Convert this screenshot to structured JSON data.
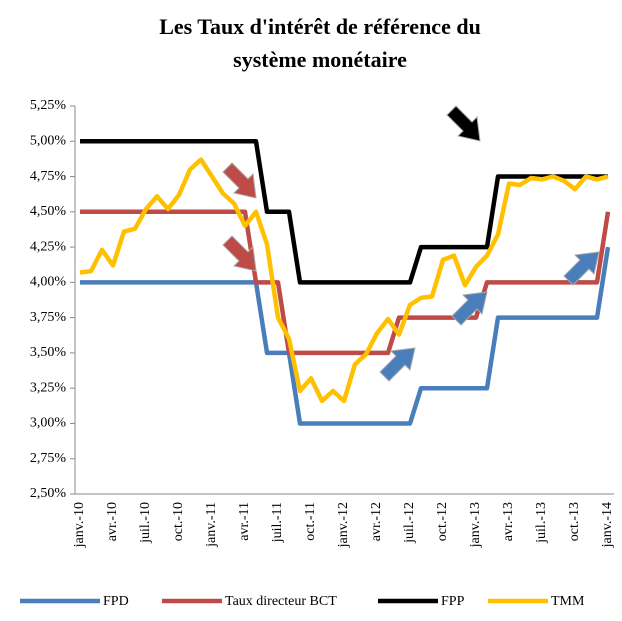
{
  "chart_data": {
    "type": "line",
    "title_lines": [
      "Les Taux d'intérêt de référence du",
      "système monétaire"
    ],
    "categories": [
      "janv.-10",
      null,
      null,
      "avr.-10",
      null,
      null,
      "juil.-10",
      null,
      null,
      "oct.-10",
      null,
      null,
      "janv.-11",
      null,
      null,
      "avr.-11",
      null,
      null,
      "juil.-11",
      null,
      null,
      "oct.-11",
      null,
      null,
      "janv.-12",
      null,
      null,
      "avr.-12",
      null,
      null,
      "juil.-12",
      null,
      null,
      "oct.-12",
      null,
      null,
      "janv.-13",
      null,
      null,
      "avr.-13",
      null,
      null,
      "juil.-13",
      null,
      null,
      "oct.-13",
      null,
      null,
      "janv.-14"
    ],
    "series": [
      {
        "name": "FPD",
        "color": "#4a7ebb",
        "values": [
          4,
          4,
          4,
          4,
          4,
          4,
          4,
          4,
          4,
          4,
          4,
          4,
          4,
          4,
          4,
          4,
          4,
          3.5,
          3.5,
          3.5,
          3,
          3,
          3,
          3,
          3,
          3,
          3,
          3,
          3,
          3,
          3,
          3.25,
          3.25,
          3.25,
          3.25,
          3.25,
          3.25,
          3.25,
          3.75,
          3.75,
          3.75,
          3.75,
          3.75,
          3.75,
          3.75,
          3.75,
          3.75,
          3.75,
          4.25
        ]
      },
      {
        "name": "Taux directeur BCT",
        "color": "#be4b48",
        "values": [
          4.5,
          4.5,
          4.5,
          4.5,
          4.5,
          4.5,
          4.5,
          4.5,
          4.5,
          4.5,
          4.5,
          4.5,
          4.5,
          4.5,
          4.5,
          4.5,
          4,
          4,
          4,
          3.5,
          3.5,
          3.5,
          3.5,
          3.5,
          3.5,
          3.5,
          3.5,
          3.5,
          3.5,
          3.75,
          3.75,
          3.75,
          3.75,
          3.75,
          3.75,
          3.75,
          3.75,
          4,
          4,
          4,
          4,
          4,
          4,
          4,
          4,
          4,
          4,
          4,
          4.5
        ]
      },
      {
        "name": "FPP",
        "color": "#000000",
        "values": [
          5,
          5,
          5,
          5,
          5,
          5,
          5,
          5,
          5,
          5,
          5,
          5,
          5,
          5,
          5,
          5,
          5,
          4.5,
          4.5,
          4.5,
          4,
          4,
          4,
          4,
          4,
          4,
          4,
          4,
          4,
          4,
          4,
          4.25,
          4.25,
          4.25,
          4.25,
          4.25,
          4.25,
          4.25,
          4.75,
          4.75,
          4.75,
          4.75,
          4.75,
          4.75,
          4.75,
          4.75,
          4.75,
          4.75,
          4.75
        ]
      },
      {
        "name": "TMM",
        "color": "#ffc000",
        "values": [
          4.07,
          4.08,
          4.23,
          4.12,
          4.36,
          4.38,
          4.52,
          4.61,
          4.52,
          4.62,
          4.8,
          4.87,
          4.75,
          4.63,
          4.56,
          4.4,
          4.5,
          4.27,
          3.75,
          3.6,
          3.23,
          3.32,
          3.16,
          3.23,
          3.16,
          3.42,
          3.49,
          3.64,
          3.74,
          3.63,
          3.84,
          3.89,
          3.9,
          4.16,
          4.19,
          3.98,
          4.11,
          4.19,
          4.34,
          4.7,
          4.69,
          4.74,
          4.73,
          4.75,
          4.72,
          4.66,
          4.75,
          4.73,
          4.75
        ]
      }
    ],
    "ylim": [
      2.5,
      5.25
    ],
    "yticks": [
      {
        "value": 2.5,
        "label": "2,50%"
      },
      {
        "value": 2.75,
        "label": "2,75%"
      },
      {
        "value": 3,
        "label": "3,00%"
      },
      {
        "value": 3.25,
        "label": "3,25%"
      },
      {
        "value": 3.5,
        "label": "3,50%"
      },
      {
        "value": 3.75,
        "label": "3,75%"
      },
      {
        "value": 4,
        "label": "4,00%"
      },
      {
        "value": 4.25,
        "label": "4,25%"
      },
      {
        "value": 4.5,
        "label": "4,50%"
      },
      {
        "value": 4.75,
        "label": "4,75%"
      },
      {
        "value": 5,
        "label": "5,00%"
      },
      {
        "value": 5.25,
        "label": "5,25%"
      }
    ],
    "grid": false,
    "legend": "bottom"
  }
}
